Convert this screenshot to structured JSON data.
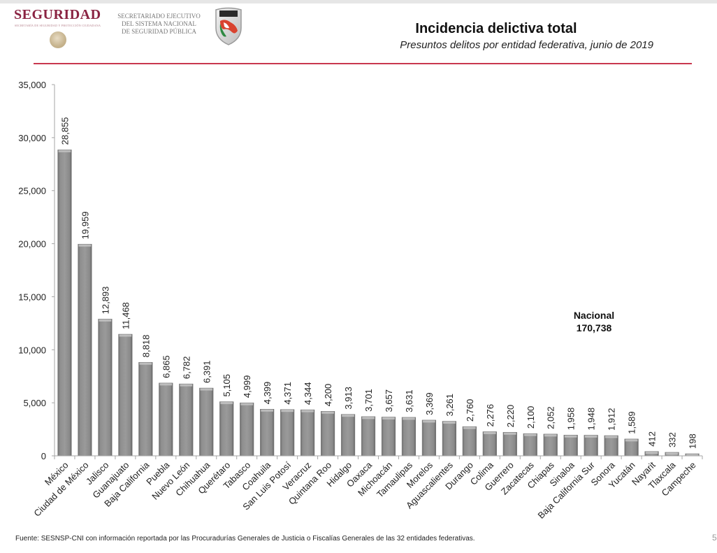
{
  "header": {
    "logo_word": "SEGURIDAD",
    "logo_sub": "SECRETARÍA DE SEGURIDAD Y PROTECCIÓN CIUDADANA",
    "secretariado_lines": [
      "SECRETARIADO EJECUTIVO",
      "DEL SISTEMA NACIONAL",
      "DE SEGURIDAD PÚBLICA"
    ],
    "accent_color": "#8a2342",
    "rule_color": "#c8384f"
  },
  "footer": {
    "source": "Fuente: SESNSP-CNI con información reportada por las Procuradurías Generales de Justicia o Fiscalías Generales de las 32 entidades federativas.",
    "page_number": "5"
  },
  "annotation": {
    "label": "Nacional",
    "value": "170,738"
  },
  "chart_data": {
    "type": "bar",
    "title": "Incidencia delictiva total",
    "subtitle": "Presuntos delitos por entidad federativa, junio de 2019",
    "xlabel": "",
    "ylabel": "",
    "ylim": [
      0,
      35000
    ],
    "yticks": [
      0,
      5000,
      10000,
      15000,
      20000,
      25000,
      30000,
      35000
    ],
    "ytick_labels": [
      "0",
      "5,000",
      "10,000",
      "15,000",
      "20,000",
      "25,000",
      "30,000",
      "35,000"
    ],
    "grid": false,
    "legend": "none",
    "bar_color": "#8c8c8c",
    "categories": [
      "México",
      "Ciudad de México",
      "Jalisco",
      "Guanajuato",
      "Baja California",
      "Puebla",
      "Nuevo León",
      "Chihuahua",
      "Querétaro",
      "Tabasco",
      "Coahuila",
      "San Luis Potosí",
      "Veracruz",
      "Quintana Roo",
      "Hidalgo",
      "Oaxaca",
      "Michoacán",
      "Tamaulipas",
      "Morelos",
      "Aguascalientes",
      "Durango",
      "Colima",
      "Guerrero",
      "Zacatecas",
      "Chiapas",
      "Sinaloa",
      "Baja California Sur",
      "Sonora",
      "Yucatán",
      "Nayarit",
      "Tlaxcala",
      "Campeche"
    ],
    "values": [
      28855,
      19959,
      12893,
      11468,
      8818,
      6865,
      6782,
      6391,
      5105,
      4999,
      4399,
      4371,
      4344,
      4200,
      3913,
      3701,
      3657,
      3631,
      3369,
      3261,
      2760,
      2276,
      2220,
      2100,
      2052,
      1958,
      1948,
      1912,
      1589,
      412,
      332,
      198
    ],
    "value_labels": [
      "28,855",
      "19,959",
      "12,893",
      "11,468",
      "8,818",
      "6,865",
      "6,782",
      "6,391",
      "5,105",
      "4,999",
      "4,399",
      "4,371",
      "4,344",
      "4,200",
      "3,913",
      "3,701",
      "3,657",
      "3,631",
      "3,369",
      "3,261",
      "2,760",
      "2,276",
      "2,220",
      "2,100",
      "2,052",
      "1,958",
      "1,948",
      "1,912",
      "1,589",
      "412",
      "332",
      "198"
    ]
  }
}
